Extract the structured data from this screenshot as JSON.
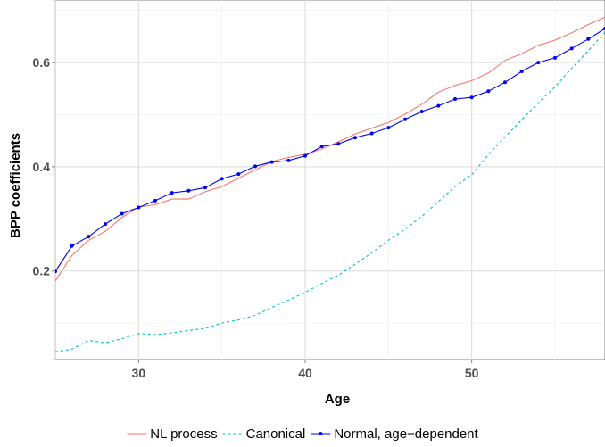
{
  "chart_data": {
    "type": "line",
    "xlabel": "Age",
    "ylabel": "BPP coefficients",
    "xlim": [
      25,
      58
    ],
    "ylim": [
      0.03,
      0.72
    ],
    "x_ticks": [
      30,
      40,
      50
    ],
    "x_tick_labels": [
      "30",
      "40",
      "50"
    ],
    "y_ticks": [
      0.2,
      0.4,
      0.6
    ],
    "y_tick_labels": [
      "0.2",
      "0.4",
      "0.6"
    ],
    "x_minor_ticks": [
      25,
      35,
      45,
      55
    ],
    "y_minor_ticks": [
      0.1,
      0.3,
      0.5,
      0.7
    ],
    "grid": true,
    "legend_position": "bottom",
    "x": [
      25,
      26,
      27,
      28,
      29,
      30,
      31,
      32,
      33,
      34,
      35,
      36,
      37,
      38,
      39,
      40,
      41,
      42,
      43,
      44,
      45,
      46,
      47,
      48,
      49,
      50,
      51,
      52,
      53,
      54,
      55,
      56,
      57,
      58
    ],
    "series": [
      {
        "name": "NL process",
        "color": "#f8766d",
        "style": "solid",
        "markers": false,
        "values": [
          0.181,
          0.23,
          0.259,
          0.276,
          0.303,
          0.323,
          0.327,
          0.338,
          0.338,
          0.352,
          0.362,
          0.378,
          0.394,
          0.41,
          0.418,
          0.424,
          0.434,
          0.448,
          0.463,
          0.474,
          0.485,
          0.501,
          0.52,
          0.543,
          0.556,
          0.565,
          0.58,
          0.604,
          0.617,
          0.633,
          0.643,
          0.657,
          0.673,
          0.687
        ]
      },
      {
        "name": "Canonical",
        "color": "#00bfc4",
        "style": "dashed",
        "markers": false,
        "values": [
          0.045,
          0.05,
          0.067,
          0.062,
          0.07,
          0.08,
          0.078,
          0.081,
          0.086,
          0.09,
          0.1,
          0.106,
          0.115,
          0.13,
          0.144,
          0.159,
          0.176,
          0.192,
          0.213,
          0.235,
          0.259,
          0.28,
          0.305,
          0.333,
          0.362,
          0.385,
          0.423,
          0.457,
          0.49,
          0.523,
          0.553,
          0.589,
          0.623,
          0.658
        ]
      },
      {
        "name": "Normal, age−dependent",
        "color": "#0000ee",
        "style": "solid",
        "markers": true,
        "values": [
          0.199,
          0.248,
          0.266,
          0.29,
          0.31,
          0.322,
          0.335,
          0.35,
          0.354,
          0.36,
          0.377,
          0.386,
          0.401,
          0.409,
          0.412,
          0.421,
          0.439,
          0.444,
          0.456,
          0.464,
          0.475,
          0.491,
          0.506,
          0.517,
          0.53,
          0.533,
          0.545,
          0.562,
          0.583,
          0.6,
          0.609,
          0.627,
          0.645,
          0.665
        ]
      }
    ]
  }
}
